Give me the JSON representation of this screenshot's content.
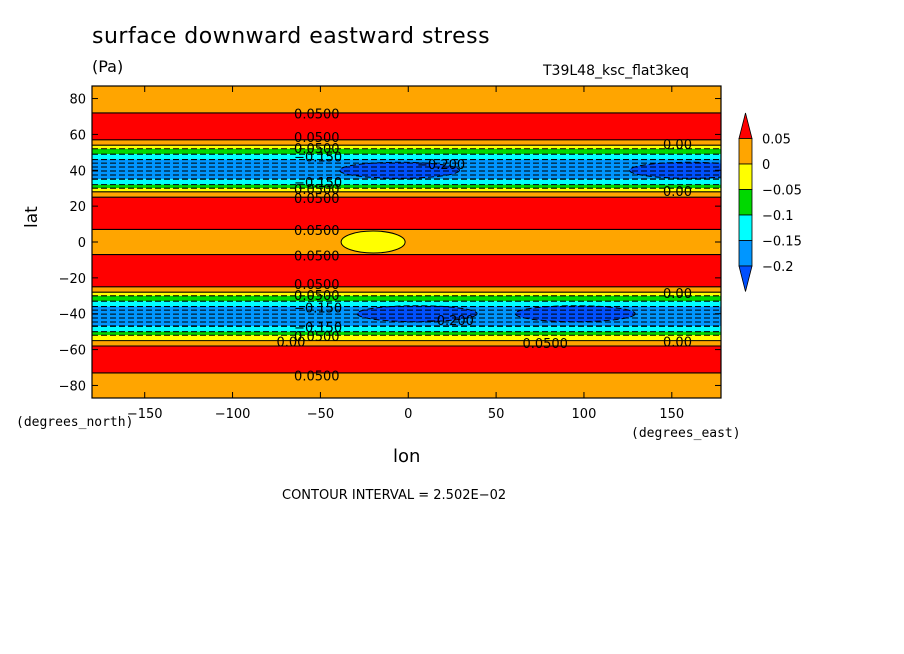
{
  "chart_data": {
    "type": "contour",
    "title": "surface downward eastward stress",
    "units": "(Pa)",
    "run_label": "T39L48_ksc_flat3keq",
    "xlabel": "lon",
    "ylabel": "lat",
    "x_unit_label": "(degrees_east)",
    "y_unit_label": "(degrees_north)",
    "xlim": [
      -180,
      178
    ],
    "ylim": [
      -87,
      87
    ],
    "x_ticks": [
      -150,
      -100,
      -50,
      0,
      50,
      100,
      150
    ],
    "x_tick_labels": [
      "−150",
      "−100",
      "−50",
      "0",
      "50",
      "100",
      "150"
    ],
    "y_ticks": [
      80,
      60,
      40,
      20,
      0,
      -20,
      -40,
      -60,
      -80
    ],
    "y_tick_labels": [
      "80",
      "60",
      "40",
      "20",
      "0",
      "−20",
      "−40",
      "−60",
      "−80"
    ],
    "contour_interval_text": "CONTOUR INTERVAL = 2.502E−02",
    "colorbar": {
      "labels": [
        "0.05",
        "0",
        "−0.05",
        "−0.1",
        "−0.15",
        "−0.2"
      ],
      "colors": [
        "#ff0000",
        "#ffa500",
        "#ffff00",
        "#00d800",
        "#00ffff",
        "#0096ff",
        "#0050ff"
      ]
    },
    "zonal_bands": [
      {
        "lat_from": 87,
        "lat_to": 72,
        "color": "#ffa500"
      },
      {
        "lat_from": 72,
        "lat_to": 57,
        "color": "#ff0000"
      },
      {
        "lat_from": 57,
        "lat_to": 54,
        "color": "#ffa500"
      },
      {
        "lat_from": 54,
        "lat_to": 52,
        "color": "#ffff00"
      },
      {
        "lat_from": 52,
        "lat_to": 49,
        "color": "#00d800"
      },
      {
        "lat_from": 49,
        "lat_to": 46,
        "color": "#00ffff"
      },
      {
        "lat_from": 46,
        "lat_to": 35,
        "color": "#0096ff"
      },
      {
        "lat_from": 35,
        "lat_to": 32,
        "color": "#00ffff"
      },
      {
        "lat_from": 32,
        "lat_to": 30,
        "color": "#00d800"
      },
      {
        "lat_from": 30,
        "lat_to": 28,
        "color": "#ffff00"
      },
      {
        "lat_from": 28,
        "lat_to": 25,
        "color": "#ffa500"
      },
      {
        "lat_from": 25,
        "lat_to": 7,
        "color": "#ff0000"
      },
      {
        "lat_from": 7,
        "lat_to": -7,
        "color": "#ffa500"
      },
      {
        "lat_from": -7,
        "lat_to": -25,
        "color": "#ff0000"
      },
      {
        "lat_from": -25,
        "lat_to": -28,
        "color": "#ffa500"
      },
      {
        "lat_from": -28,
        "lat_to": -30,
        "color": "#ffff00"
      },
      {
        "lat_from": -30,
        "lat_to": -33,
        "color": "#00d800"
      },
      {
        "lat_from": -33,
        "lat_to": -36,
        "color": "#00ffff"
      },
      {
        "lat_from": -36,
        "lat_to": -47,
        "color": "#0096ff"
      },
      {
        "lat_from": -47,
        "lat_to": -50,
        "color": "#00ffff"
      },
      {
        "lat_from": -50,
        "lat_to": -52,
        "color": "#00d800"
      },
      {
        "lat_from": -52,
        "lat_to": -55,
        "color": "#ffff00"
      },
      {
        "lat_from": -55,
        "lat_to": -58,
        "color": "#ffa500"
      },
      {
        "lat_from": -58,
        "lat_to": -73,
        "color": "#ff0000"
      },
      {
        "lat_from": -73,
        "lat_to": -87,
        "color": "#ffa500"
      }
    ],
    "features": [
      {
        "kind": "max",
        "lon": -20,
        "lat": 0,
        "color": "#ffff00"
      },
      {
        "kind": "min",
        "lon": -5,
        "lat": 40,
        "color": "#0050ff"
      },
      {
        "kind": "min",
        "lon": 160,
        "lat": 40,
        "color": "#0050ff"
      },
      {
        "kind": "min",
        "lon": 5,
        "lat": -40,
        "color": "#0050ff"
      },
      {
        "kind": "min",
        "lon": 95,
        "lat": -40,
        "color": "#0050ff"
      }
    ],
    "contour_labels": [
      {
        "text": "0.0500",
        "lon": -65,
        "lat": 71
      },
      {
        "text": "0.0500",
        "lon": -65,
        "lat": 58
      },
      {
        "text": "0.0500",
        "lon": -65,
        "lat": 52
      },
      {
        "text": "−0.150",
        "lon": -65,
        "lat": 47
      },
      {
        "text": "−0.200",
        "lon": 5,
        "lat": 43
      },
      {
        "text": "0.00",
        "lon": 145,
        "lat": 54
      },
      {
        "text": "−0.150",
        "lon": -65,
        "lat": 33
      },
      {
        "text": "0.0500",
        "lon": -65,
        "lat": 29
      },
      {
        "text": "0.0500",
        "lon": -65,
        "lat": 24
      },
      {
        "text": "0.00",
        "lon": 145,
        "lat": 28
      },
      {
        "text": "0.0500",
        "lon": -65,
        "lat": 6
      },
      {
        "text": "0.0500",
        "lon": -65,
        "lat": -8
      },
      {
        "text": "0.0500",
        "lon": -65,
        "lat": -24
      },
      {
        "text": "0.0500",
        "lon": -65,
        "lat": -30
      },
      {
        "text": "0.00",
        "lon": 145,
        "lat": -29
      },
      {
        "text": "−0.150",
        "lon": -65,
        "lat": -37
      },
      {
        "text": "−0.200",
        "lon": 10,
        "lat": -44
      },
      {
        "text": "−0.150",
        "lon": -65,
        "lat": -48
      },
      {
        "text": "0.0500",
        "lon": -65,
        "lat": -53
      },
      {
        "text": "0.00",
        "lon": -75,
        "lat": -56
      },
      {
        "text": "0.00",
        "lon": 145,
        "lat": -56
      },
      {
        "text": "0.0500",
        "lon": 65,
        "lat": -57
      },
      {
        "text": "0.0500",
        "lon": -65,
        "lat": -75
      }
    ]
  }
}
